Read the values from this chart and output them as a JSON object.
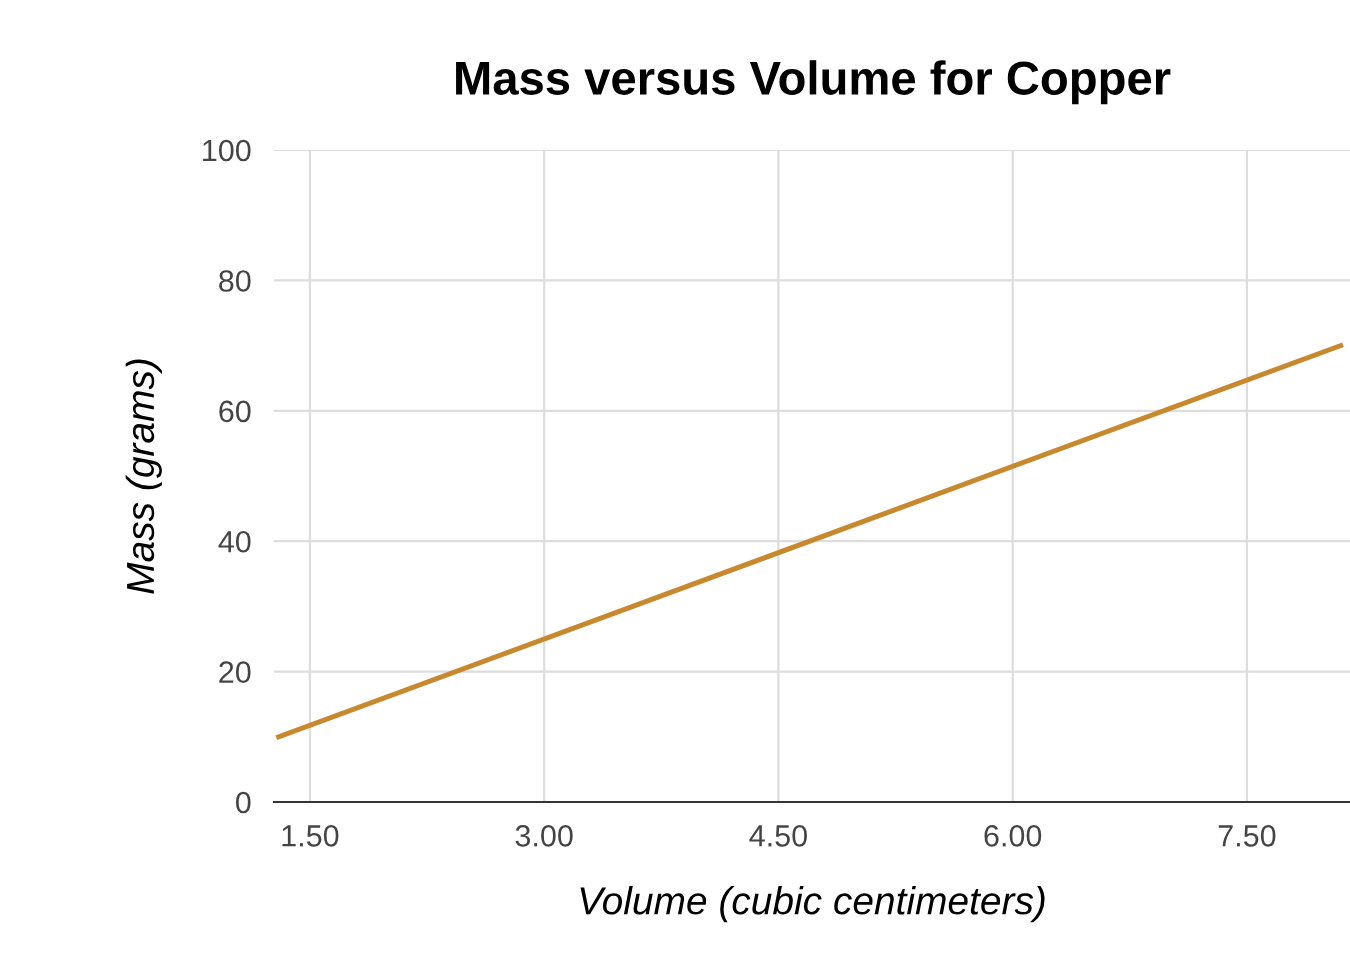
{
  "chart_data": {
    "type": "line",
    "title": "Mass versus Volume for Copper",
    "xlabel": "Volume (cubic centimeters)",
    "ylabel": "Mass (grams)",
    "x": [
      1.3,
      8.1
    ],
    "series": [
      {
        "color": "#c8882e",
        "values": [
          10,
          70
        ]
      }
    ],
    "xlim": [
      1.27,
      8.16
    ],
    "ylim": [
      0,
      100
    ],
    "xticks": [
      {
        "value": 1.5,
        "label": "1.50"
      },
      {
        "value": 3,
        "label": "3.00"
      },
      {
        "value": 4.5,
        "label": "4.50"
      },
      {
        "value": 6,
        "label": "6.00"
      },
      {
        "value": 7.5,
        "label": "7.50"
      }
    ],
    "yticks": [
      0,
      20,
      40,
      60,
      80,
      100
    ],
    "grid": true,
    "legend": false,
    "marker": "none",
    "line_style": "solid"
  }
}
